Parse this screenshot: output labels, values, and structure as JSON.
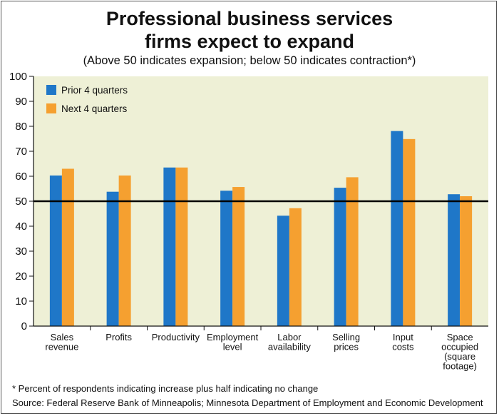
{
  "chart_data": {
    "type": "bar",
    "title": "Professional business services firms expect to expand",
    "title_lines": [
      "Professional business services",
      "firms expect to expand"
    ],
    "subtitle": "(Above 50 indicates expansion; below 50 indicates contraction*)",
    "categories": [
      [
        "Sales",
        "revenue"
      ],
      [
        "Profits"
      ],
      [
        "Productivity"
      ],
      [
        "Employment",
        "level"
      ],
      [
        "Labor",
        "availability"
      ],
      [
        "Selling",
        "prices"
      ],
      [
        "Input",
        "costs"
      ],
      [
        "Space",
        "occupied",
        "(square",
        "footage)"
      ]
    ],
    "series": [
      {
        "name": "Prior 4 quarters",
        "color": "#1f77c8",
        "values": [
          60.3,
          53.8,
          63.5,
          54.2,
          44.2,
          55.4,
          78.1,
          52.8
        ]
      },
      {
        "name": "Next 4 quarters",
        "color": "#f5a030",
        "values": [
          63.0,
          60.3,
          63.5,
          55.7,
          47.2,
          59.6,
          74.9,
          52.0
        ]
      }
    ],
    "ylim": [
      0,
      100
    ],
    "yticks": [
      0,
      10,
      20,
      30,
      40,
      50,
      60,
      70,
      80,
      90,
      100
    ],
    "reference_line": 50,
    "legend_position": "top-left",
    "plot_background": "#eef0d6",
    "grid": false,
    "footnote": "* Percent of respondents indicating increase plus half indicating no change",
    "source": "Source: Federal Reserve Bank of Minneapolis; Minnesota Department of Employment and Economic Development"
  }
}
